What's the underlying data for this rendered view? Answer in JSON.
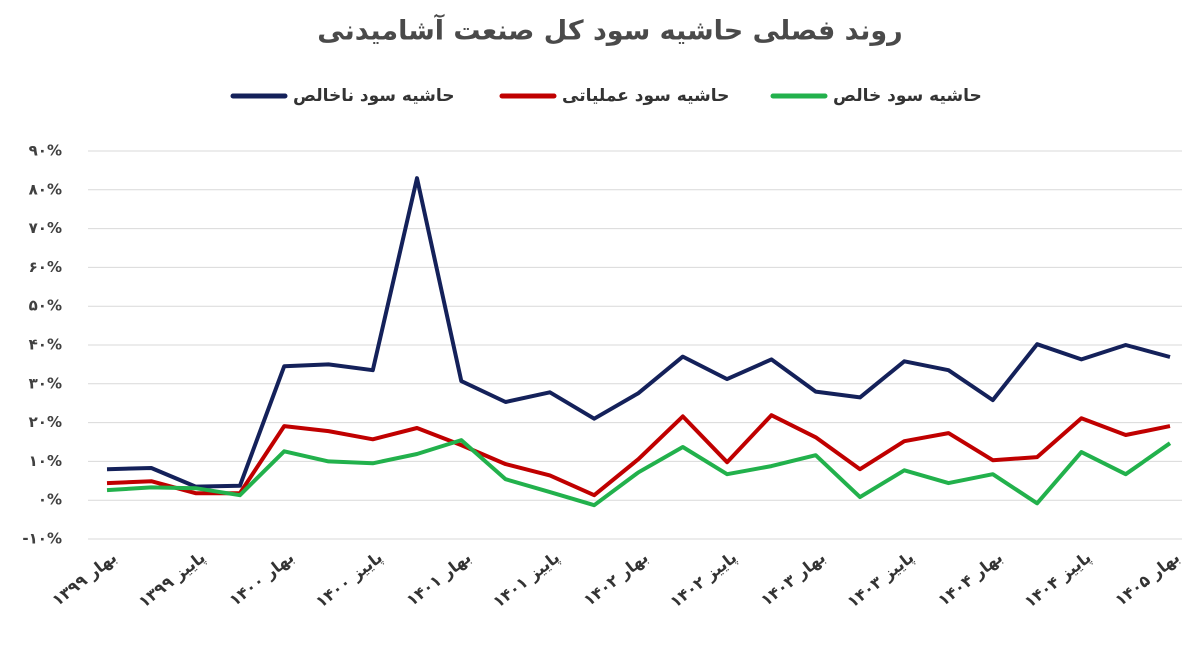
{
  "chart_data": {
    "type": "line",
    "title": "روند فصلی حاشیه سود کل صنعت آشامیدنی",
    "categories": [
      "بهار ۱۳۹۹",
      null,
      "پاییز ۱۳۹۹",
      null,
      "بهار ۱۴۰۰",
      null,
      "پاییز ۱۴۰۰",
      null,
      "بهار ۱۴۰۱",
      null,
      "پاییز ۱۴۰۱",
      null,
      "بهار ۱۴۰۲",
      null,
      "پاییز ۱۴۰۲",
      null,
      "بهار ۱۴۰۳",
      null,
      "پاییز ۱۴۰۳",
      null,
      "بهار ۱۴۰۴",
      null,
      "پاییز ۱۴۰۴",
      null,
      "بهار ۱۴۰۵"
    ],
    "series": [
      {
        "name": "حاشیه سود ناخالص",
        "color": "#14215a",
        "values": [
          8,
          8.3,
          3.5,
          3.7,
          34.5,
          35,
          33.5,
          83,
          30.7,
          25.3,
          27.8,
          21,
          27.6,
          37,
          31.2,
          36.3,
          28,
          26.5,
          35.8,
          33.5,
          25.8,
          40.2,
          36.3,
          40,
          36.9
        ]
      },
      {
        "name": "حاشیه سود عملیاتی",
        "color": "#c00000",
        "values": [
          4.4,
          4.9,
          1.8,
          1.8,
          19.1,
          17.8,
          15.7,
          18.6,
          14.2,
          9.3,
          6.4,
          1.3,
          10.6,
          21.6,
          9.8,
          21.9,
          16.2,
          8,
          15.2,
          17.3,
          10.3,
          11.1,
          21.1,
          16.8,
          19.1
        ]
      },
      {
        "name": "حاشیه سود خالص",
        "color": "#22b14c",
        "values": [
          2.6,
          3.3,
          3.1,
          1.3,
          12.6,
          10,
          9.5,
          11.9,
          15.5,
          5.4,
          2.1,
          -1.3,
          7.2,
          13.7,
          6.7,
          8.8,
          11.6,
          0.8,
          7.7,
          4.4,
          6.7,
          -0.8,
          12.4,
          6.7,
          14.7
        ]
      }
    ],
    "ylim": [
      -10,
      90
    ],
    "yticks": [
      {
        "value": -10,
        "label": "-۱۰%"
      },
      {
        "value": 0,
        "label": "۰%"
      },
      {
        "value": 10,
        "label": "۱۰%"
      },
      {
        "value": 20,
        "label": "۲۰%"
      },
      {
        "value": 30,
        "label": "۳۰%"
      },
      {
        "value": 40,
        "label": "۴۰%"
      },
      {
        "value": 50,
        "label": "۵۰%"
      },
      {
        "value": 60,
        "label": "۶۰%"
      },
      {
        "value": 70,
        "label": "۷۰%"
      },
      {
        "value": 80,
        "label": "۸۰%"
      },
      {
        "value": 90,
        "label": "۹۰%"
      }
    ],
    "grid": true
  }
}
